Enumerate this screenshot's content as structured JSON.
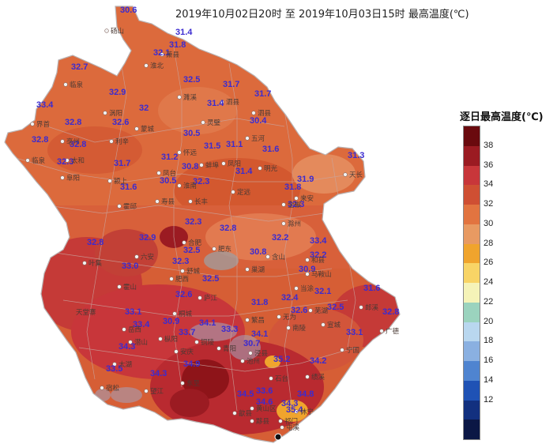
{
  "title": "2019年10月02日20时 至 2019年10月03日15时 最高温度(℃)",
  "legend": {
    "title": "逐日最高温度(℃)",
    "ticks": [
      "38",
      "36",
      "34",
      "32",
      "30",
      "28",
      "26",
      "24",
      "22",
      "20",
      "18",
      "16",
      "14",
      "12"
    ],
    "colors": [
      "#6a0a0e",
      "#9b1b22",
      "#c8363a",
      "#cf4f33",
      "#e27440",
      "#e89a62",
      "#f0a42d",
      "#f8d466",
      "#f5f3b8",
      "#9bd3be",
      "#b9d7ef",
      "#8ab0e1",
      "#4f84d0",
      "#1f52b5",
      "#12307f",
      "#0b1745"
    ]
  },
  "stations": [
    {
      "v": "30.6",
      "name": "砀山"
    },
    {
      "v": "31.4",
      "name": "萧县"
    },
    {
      "v": "31.8",
      "name": ""
    },
    {
      "v": "32.1",
      "name": "淮北"
    },
    {
      "v": "32.7",
      "name": "临泉"
    },
    {
      "v": "32.5",
      "name": "濉溪"
    },
    {
      "v": "31.7",
      "name": "泗县"
    },
    {
      "v": "32.9",
      "name": "涡阳"
    },
    {
      "v": "32",
      "name": "蒙城"
    },
    {
      "v": "31.4",
      "name": "灵璧"
    },
    {
      "v": "31.7",
      "name": "泗县"
    },
    {
      "v": "33.4",
      "name": "界首"
    },
    {
      "v": "32.8",
      "name": "亳州"
    },
    {
      "v": "32.6",
      "name": "利辛"
    },
    {
      "v": "30.4",
      "name": "五河"
    },
    {
      "v": "32.8",
      "name": "太和"
    },
    {
      "v": "30.5",
      "name": "怀远"
    },
    {
      "v": "31.5",
      "name": "蚌埠"
    },
    {
      "v": "31.1",
      "name": "凤阳"
    },
    {
      "v": "31.6",
      "name": "明光"
    },
    {
      "v": "32.8",
      "name": "临泉"
    },
    {
      "v": "32.3",
      "name": "阜阳"
    },
    {
      "v": "31.7",
      "name": "颍上"
    },
    {
      "v": "31.2",
      "name": "凤台"
    },
    {
      "v": "30.8",
      "name": "淮南"
    },
    {
      "v": "31.4",
      "name": "定远"
    },
    {
      "v": "31.3",
      "name": "天长"
    },
    {
      "v": "31.6",
      "name": "霍邱"
    },
    {
      "v": "30.5",
      "name": "寿县"
    },
    {
      "v": "32.3",
      "name": "长丰"
    },
    {
      "v": "31.8",
      "name": "全椒"
    },
    {
      "v": "31.9",
      "name": "来安"
    },
    {
      "v": "32.3",
      "name": "滁州"
    },
    {
      "v": "32.3",
      "name": "合肥"
    },
    {
      "v": "32.8",
      "name": "肥东"
    },
    {
      "v": "32.8",
      "name": "叶集"
    },
    {
      "v": "32.9",
      "name": "六安"
    },
    {
      "v": "32.5",
      "name": "舒城"
    },
    {
      "v": "32.2",
      "name": "含山"
    },
    {
      "v": "33.4",
      "name": "和县"
    },
    {
      "v": "32.3",
      "name": "肥西"
    },
    {
      "v": "30.8",
      "name": "巢湖"
    },
    {
      "v": "32.2",
      "name": "马鞍山"
    },
    {
      "v": "33.0",
      "name": "霍山"
    },
    {
      "v": "32.5",
      "name": "庐江"
    },
    {
      "v": "30.9",
      "name": "当涂"
    },
    {
      "v": "32.6",
      "name": "桐城"
    },
    {
      "v": "32.4",
      "name": "无为"
    },
    {
      "v": "32.1",
      "name": "芜湖"
    },
    {
      "v": "31.8",
      "name": "繁昌"
    },
    {
      "v": "31.6",
      "name": "郎溪"
    },
    {
      "v": "33.1",
      "name": "岳西"
    },
    {
      "v": "32.6",
      "name": "南陵"
    },
    {
      "v": "32.5",
      "name": "宣城"
    },
    {
      "v": "32.8",
      "name": "广德"
    },
    {
      "v": "33.4",
      "name": "潜山"
    },
    {
      "v": "30.9",
      "name": "枞阳"
    },
    {
      "v": "34.1",
      "name": "铜陵"
    },
    {
      "v": "33.3",
      "name": "青阳"
    },
    {
      "v": "33.1",
      "name": "宁国"
    },
    {
      "v": "34.1",
      "name": "泾县"
    },
    {
      "v": "33.7",
      "name": "安庆"
    },
    {
      "v": "34.3",
      "name": "太湖"
    },
    {
      "v": "30.7",
      "name": "池州"
    },
    {
      "v": "35.2",
      "name": "石台"
    },
    {
      "v": "34.2",
      "name": "绩溪"
    },
    {
      "v": "33.5",
      "name": "宿松"
    },
    {
      "v": "34.3",
      "name": "望江"
    },
    {
      "v": "34.9",
      "name": "东至"
    },
    {
      "v": "33.6",
      "name": "黄山区"
    },
    {
      "v": "34.5",
      "name": "歙县"
    },
    {
      "v": "34.3",
      "name": "祁门"
    },
    {
      "v": "34.8",
      "name": "休宁"
    },
    {
      "v": "34.6",
      "name": "黟县"
    },
    {
      "v": "35.4",
      "name": "屯溪"
    },
    {
      "v": "",
      "name": "天堂寨"
    }
  ]
}
